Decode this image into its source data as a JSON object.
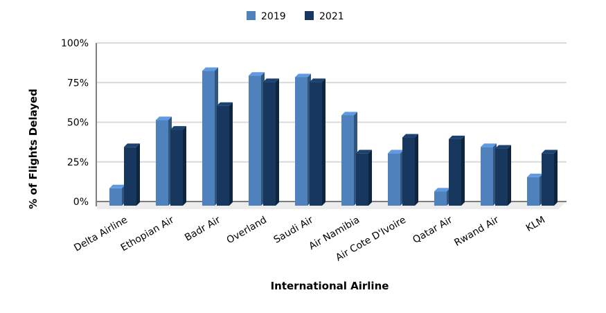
{
  "chart_data": {
    "type": "bar",
    "title": "",
    "xlabel": "International Airline",
    "ylabel": "% of Flights Delayed",
    "ylim": [
      0,
      100
    ],
    "yticks": [
      "0%",
      "25%",
      "50%",
      "75%",
      "100%"
    ],
    "grid": true,
    "legend_position": "top-center",
    "categories": [
      "Delta Airline",
      "Ethopian Air",
      "Badr Air",
      "Overland",
      "Saudi Air",
      "Air Namibia",
      "Air Cote D'Ivoire",
      "Qatar Air",
      "Rwand Air",
      "KLM"
    ],
    "series": [
      {
        "name": "2019",
        "color": "#4f81bd",
        "values": [
          11,
          54,
          85,
          82,
          81,
          57,
          33,
          9,
          37,
          18
        ]
      },
      {
        "name": "2021",
        "color": "#17375e",
        "values": [
          37,
          48,
          63,
          78,
          78,
          33,
          43,
          42,
          36,
          33
        ]
      }
    ]
  }
}
